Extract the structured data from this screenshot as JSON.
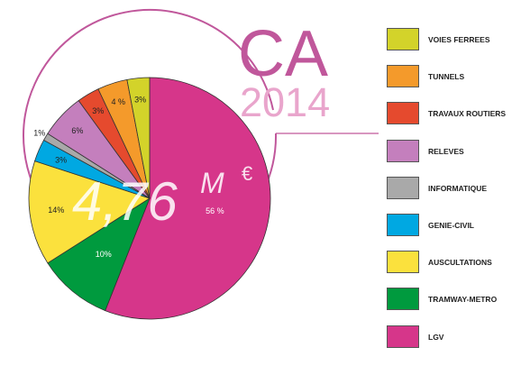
{
  "chart_data": {
    "type": "pie",
    "heading": "CA",
    "year": "2014",
    "total": {
      "value": "4,76",
      "unit": "M",
      "currency": "€"
    },
    "slices": [
      {
        "label": "LGV",
        "value": 56,
        "display": "56 %",
        "color": "#d6368a"
      },
      {
        "label": "TRAMWAY-METRO",
        "value": 10,
        "display": "10%",
        "color": "#009a3e"
      },
      {
        "label": "AUSCULTATIONS",
        "value": 14,
        "display": "14%",
        "color": "#fbe13d"
      },
      {
        "label": "GENIE-CIVIL",
        "value": 3,
        "display": "3%",
        "color": "#00a8e2"
      },
      {
        "label": "INFORMATIQUE",
        "value": 1,
        "display": "1%",
        "color": "#a9a9a9"
      },
      {
        "label": "RELEVES",
        "value": 6,
        "display": "6%",
        "color": "#c47fbd"
      },
      {
        "label": "TRAVAUX ROUTIERS",
        "value": 3,
        "display": "3%",
        "color": "#e54a2e"
      },
      {
        "label": "TUNNELS",
        "value": 4,
        "display": "4 %",
        "color": "#f49a2b"
      },
      {
        "label": "VOIES FERREES",
        "value": 3,
        "display": "3%",
        "color": "#d3d32a"
      }
    ],
    "legend": [
      "VOIES FERREES",
      "TUNNELS",
      "TRAVAUX ROUTIERS",
      "RELEVES",
      "INFORMATIQUE",
      "GENIE-CIVIL",
      "AUSCULTATIONS",
      "TRAMWAY-METRO",
      "LGV"
    ],
    "legend_placement": "right",
    "colors": {
      "heading": "#c0579b",
      "year": "#e9a5cc",
      "outline": "#c0579b",
      "total": "#ffffff"
    }
  }
}
